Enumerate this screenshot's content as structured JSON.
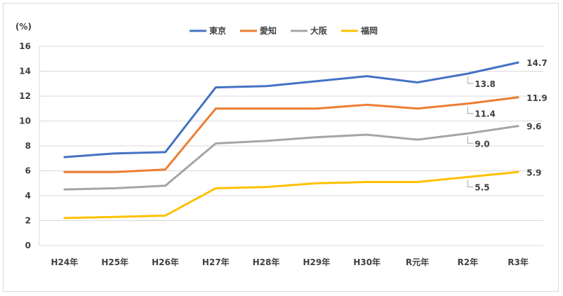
{
  "chart_data": {
    "type": "line",
    "y_unit": "(%)",
    "categories": [
      "H24年",
      "H25年",
      "H26年",
      "H27年",
      "H28年",
      "H29年",
      "H30年",
      "R元年",
      "R2年",
      "R3年"
    ],
    "ylim": [
      0,
      16
    ],
    "yticks": [
      0,
      2,
      4,
      6,
      8,
      10,
      12,
      14,
      16
    ],
    "grid": true,
    "legend_position": "top-center",
    "series": [
      {
        "name": "東京",
        "color": "#4472c4",
        "values": [
          7.1,
          7.4,
          7.5,
          12.7,
          12.8,
          13.2,
          13.6,
          13.1,
          13.8,
          14.7
        ]
      },
      {
        "name": "愛知",
        "color": "#ed7d31",
        "values": [
          5.9,
          5.9,
          6.1,
          11.0,
          11.0,
          11.0,
          11.3,
          11.0,
          11.4,
          11.9
        ]
      },
      {
        "name": "大阪",
        "color": "#a5a5a5",
        "values": [
          4.5,
          4.6,
          4.8,
          8.2,
          8.4,
          8.7,
          8.9,
          8.5,
          9.0,
          9.6
        ]
      },
      {
        "name": "福岡",
        "color": "#ffc000",
        "values": [
          2.2,
          2.3,
          2.4,
          4.6,
          4.7,
          5.0,
          5.1,
          5.1,
          5.5,
          5.9
        ]
      }
    ],
    "data_labels": [
      {
        "series": "東京",
        "index": 8,
        "text": "13.8"
      },
      {
        "series": "東京",
        "index": 9,
        "text": "14.7"
      },
      {
        "series": "愛知",
        "index": 8,
        "text": "11.4"
      },
      {
        "series": "愛知",
        "index": 9,
        "text": "11.9"
      },
      {
        "series": "大阪",
        "index": 8,
        "text": "9.0"
      },
      {
        "series": "大阪",
        "index": 9,
        "text": "9.6"
      },
      {
        "series": "福岡",
        "index": 8,
        "text": "5.5"
      },
      {
        "series": "福岡",
        "index": 9,
        "text": "5.9"
      }
    ]
  }
}
